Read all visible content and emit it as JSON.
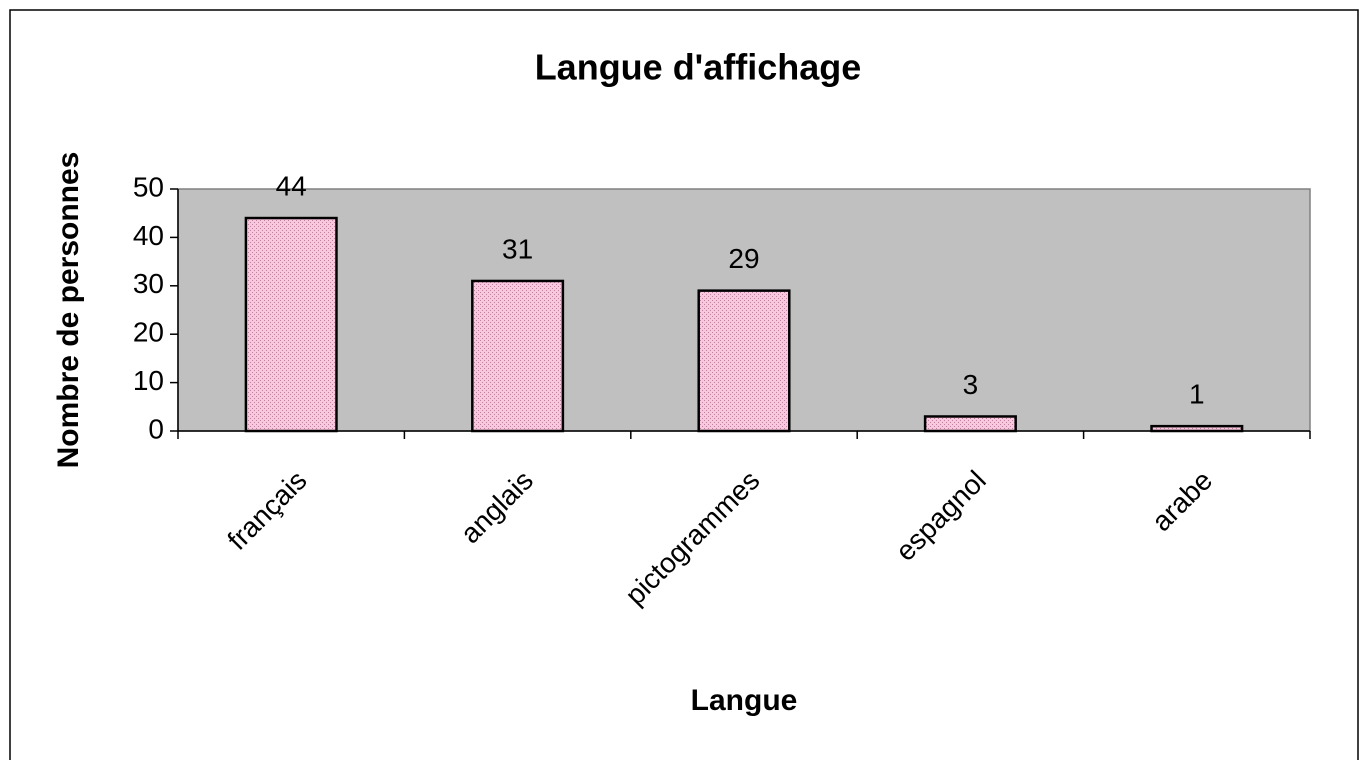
{
  "chart_data": {
    "type": "bar",
    "title": "Langue d'affichage",
    "x_label": "Langue",
    "y_label": "Nombre de personnes",
    "categories": [
      "français",
      "anglais",
      "pictogrammes",
      "espagnol",
      "arabe"
    ],
    "values": [
      44,
      31,
      29,
      3,
      1
    ],
    "color": "#f7c8de",
    "ylim": [
      0,
      50
    ],
    "yticks": [
      0,
      10,
      20,
      30,
      40,
      50
    ],
    "grid": false
  }
}
